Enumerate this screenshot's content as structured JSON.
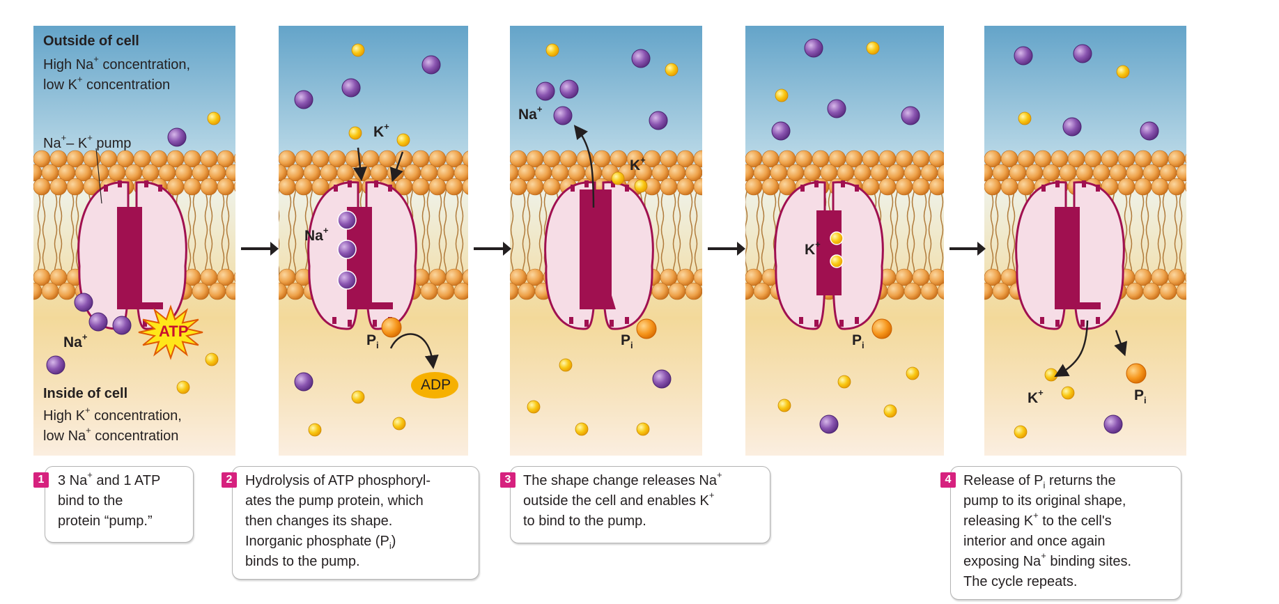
{
  "colors": {
    "sodium": "#7b4aa0",
    "potassium": "#f7c40f",
    "pump_core": "#a01050",
    "pump_body": "#f6dde6",
    "atp_burst": "#ffe61a",
    "adp": "#f6b000",
    "step_number": "#d6217e"
  },
  "ions": {
    "sodium_name": "Na",
    "potassium_name": "K",
    "charge": "+"
  },
  "panel1": {
    "outside_title": "Outside of cell",
    "outside_line1_pre": "High Na",
    "outside_line1_post": " concentration,",
    "outside_line2_pre": "low K",
    "outside_line2_post": " concentration",
    "pump_label_a": "Na",
    "pump_label_mid": "– K",
    "pump_label_post": " pump",
    "atp": "ATP",
    "inside_title": "Inside of cell",
    "inside_line1_pre": "High K",
    "inside_line1_post": " concentration,",
    "inside_line2_pre": "low Na",
    "inside_line2_post": " concentration"
  },
  "phosphate": {
    "symbol": "P",
    "subscript": "i"
  },
  "adp": "ADP",
  "steps": [
    {
      "number": "1",
      "lines": [
        "3 Na|+| and 1 ATP",
        "bind to the",
        "protein “pump.”"
      ]
    },
    {
      "number": "2",
      "lines": [
        "Hydrolysis of ATP phosphoryl-",
        "ates the pump protein, which",
        "then changes its shape.",
        "Inorganic phosphate (P||i|)",
        "binds to the pump."
      ]
    },
    {
      "number": "3",
      "lines": [
        "The shape change releases Na|+|",
        "outside the cell and enables K|+|",
        "to bind to the pump."
      ]
    },
    {
      "number": "4",
      "lines": [
        "Release of P||i| returns the",
        "pump to its original shape,",
        "releasing K|+| to the cell's",
        "interior and once again",
        "exposing Na|+| binding sites.",
        "The cycle repeats."
      ]
    }
  ]
}
